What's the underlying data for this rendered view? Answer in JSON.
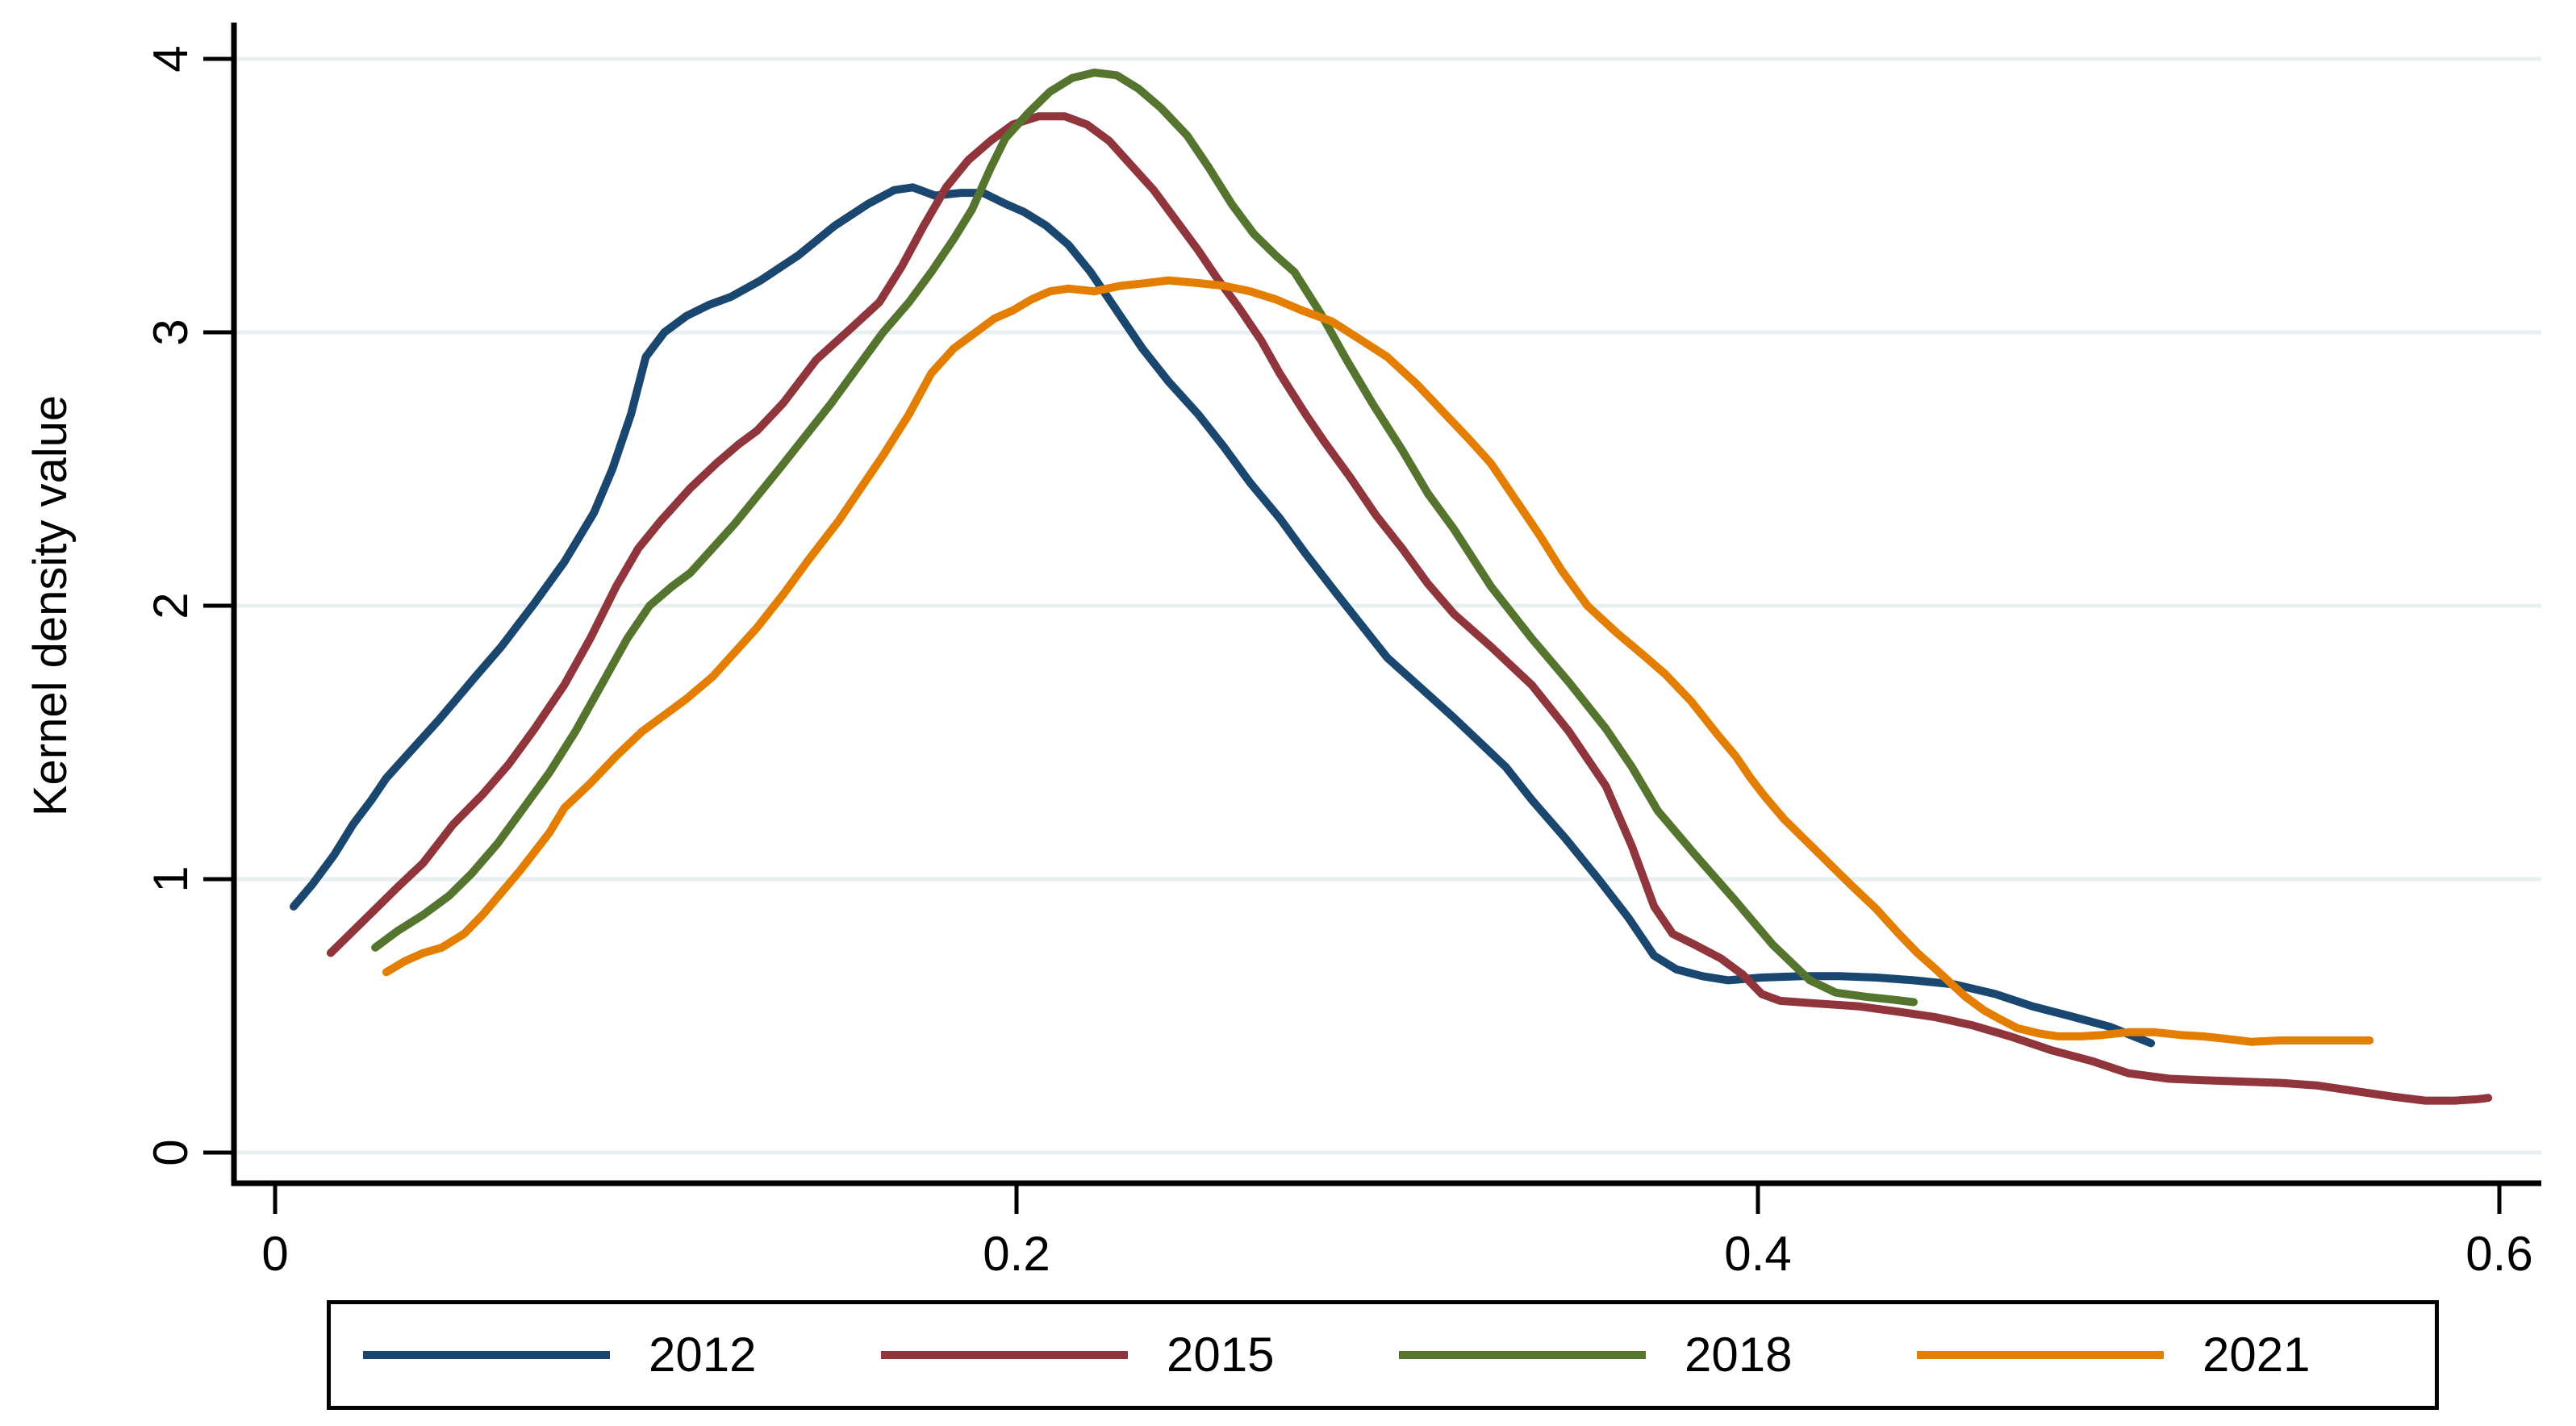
{
  "colors": {
    "background": "#ffffff",
    "axis": "#000000",
    "grid": "#e7eff1",
    "legend_border": "#000000"
  },
  "chart_data": {
    "type": "line",
    "title": "",
    "xlabel": "",
    "ylabel": "Kernel density value",
    "grid": "horizontal",
    "legend_position": "bottom",
    "xlim": [
      -0.011,
      0.611
    ],
    "ylim": [
      0,
      4
    ],
    "x_ticks": {
      "values": [
        0,
        0.2,
        0.4,
        0.6
      ],
      "labels": [
        "0",
        "0.2",
        "0.4",
        "0.6"
      ]
    },
    "y_ticks": {
      "values": [
        0,
        1,
        2,
        3,
        4
      ],
      "labels": [
        "0",
        "1",
        "2",
        "3",
        "4"
      ]
    },
    "series": [
      {
        "name": "2012",
        "color": "#1a476f",
        "points": [
          [
            0.005,
            0.9
          ],
          [
            0.01,
            0.98
          ],
          [
            0.016,
            1.09
          ],
          [
            0.021,
            1.2
          ],
          [
            0.026,
            1.29
          ],
          [
            0.03,
            1.37
          ],
          [
            0.036,
            1.46
          ],
          [
            0.044,
            1.58
          ],
          [
            0.049,
            1.66
          ],
          [
            0.054,
            1.74
          ],
          [
            0.061,
            1.85
          ],
          [
            0.07,
            2.01
          ],
          [
            0.078,
            2.16
          ],
          [
            0.082,
            2.25
          ],
          [
            0.086,
            2.34
          ],
          [
            0.091,
            2.5
          ],
          [
            0.096,
            2.7
          ],
          [
            0.1,
            2.91
          ],
          [
            0.105,
            3.0
          ],
          [
            0.111,
            3.06
          ],
          [
            0.117,
            3.1
          ],
          [
            0.123,
            3.13
          ],
          [
            0.131,
            3.19
          ],
          [
            0.141,
            3.28
          ],
          [
            0.151,
            3.39
          ],
          [
            0.16,
            3.47
          ],
          [
            0.167,
            3.52
          ],
          [
            0.172,
            3.53
          ],
          [
            0.178,
            3.5
          ],
          [
            0.185,
            3.51
          ],
          [
            0.191,
            3.51
          ],
          [
            0.197,
            3.47
          ],
          [
            0.202,
            3.44
          ],
          [
            0.208,
            3.39
          ],
          [
            0.214,
            3.32
          ],
          [
            0.22,
            3.22
          ],
          [
            0.227,
            3.08
          ],
          [
            0.234,
            2.94
          ],
          [
            0.241,
            2.82
          ],
          [
            0.249,
            2.7
          ],
          [
            0.256,
            2.58
          ],
          [
            0.263,
            2.45
          ],
          [
            0.271,
            2.32
          ],
          [
            0.278,
            2.19
          ],
          [
            0.286,
            2.05
          ],
          [
            0.293,
            1.93
          ],
          [
            0.3,
            1.81
          ],
          [
            0.309,
            1.7
          ],
          [
            0.318,
            1.59
          ],
          [
            0.325,
            1.5
          ],
          [
            0.332,
            1.41
          ],
          [
            0.339,
            1.29
          ],
          [
            0.348,
            1.15
          ],
          [
            0.357,
            1.0
          ],
          [
            0.365,
            0.86
          ],
          [
            0.372,
            0.72
          ],
          [
            0.378,
            0.67
          ],
          [
            0.385,
            0.645
          ],
          [
            0.392,
            0.63
          ],
          [
            0.401,
            0.64
          ],
          [
            0.412,
            0.645
          ],
          [
            0.422,
            0.645
          ],
          [
            0.432,
            0.64
          ],
          [
            0.442,
            0.63
          ],
          [
            0.453,
            0.615
          ],
          [
            0.464,
            0.58
          ],
          [
            0.474,
            0.535
          ],
          [
            0.484,
            0.5
          ],
          [
            0.495,
            0.46
          ],
          [
            0.506,
            0.4
          ]
        ]
      },
      {
        "name": "2015",
        "color": "#90353b",
        "points": [
          [
            0.015,
            0.73
          ],
          [
            0.021,
            0.81
          ],
          [
            0.027,
            0.89
          ],
          [
            0.033,
            0.97
          ],
          [
            0.04,
            1.06
          ],
          [
            0.048,
            1.2
          ],
          [
            0.056,
            1.31
          ],
          [
            0.063,
            1.42
          ],
          [
            0.07,
            1.55
          ],
          [
            0.078,
            1.71
          ],
          [
            0.085,
            1.88
          ],
          [
            0.092,
            2.07
          ],
          [
            0.098,
            2.21
          ],
          [
            0.104,
            2.31
          ],
          [
            0.112,
            2.43
          ],
          [
            0.119,
            2.52
          ],
          [
            0.125,
            2.59
          ],
          [
            0.13,
            2.64
          ],
          [
            0.137,
            2.74
          ],
          [
            0.146,
            2.9
          ],
          [
            0.155,
            3.01
          ],
          [
            0.163,
            3.11
          ],
          [
            0.169,
            3.24
          ],
          [
            0.175,
            3.39
          ],
          [
            0.181,
            3.53
          ],
          [
            0.187,
            3.63
          ],
          [
            0.193,
            3.7
          ],
          [
            0.199,
            3.76
          ],
          [
            0.206,
            3.79
          ],
          [
            0.213,
            3.79
          ],
          [
            0.219,
            3.76
          ],
          [
            0.225,
            3.7
          ],
          [
            0.231,
            3.61
          ],
          [
            0.237,
            3.52
          ],
          [
            0.243,
            3.41
          ],
          [
            0.249,
            3.3
          ],
          [
            0.254,
            3.2
          ],
          [
            0.26,
            3.09
          ],
          [
            0.266,
            2.97
          ],
          [
            0.271,
            2.85
          ],
          [
            0.278,
            2.7
          ],
          [
            0.283,
            2.6
          ],
          [
            0.29,
            2.47
          ],
          [
            0.297,
            2.33
          ],
          [
            0.304,
            2.21
          ],
          [
            0.311,
            2.08
          ],
          [
            0.318,
            1.97
          ],
          [
            0.328,
            1.85
          ],
          [
            0.339,
            1.71
          ],
          [
            0.349,
            1.54
          ],
          [
            0.359,
            1.34
          ],
          [
            0.366,
            1.12
          ],
          [
            0.372,
            0.9
          ],
          [
            0.377,
            0.8
          ],
          [
            0.383,
            0.76
          ],
          [
            0.39,
            0.71
          ],
          [
            0.396,
            0.65
          ],
          [
            0.401,
            0.58
          ],
          [
            0.406,
            0.555
          ],
          [
            0.416,
            0.545
          ],
          [
            0.427,
            0.535
          ],
          [
            0.438,
            0.515
          ],
          [
            0.448,
            0.495
          ],
          [
            0.458,
            0.465
          ],
          [
            0.468,
            0.425
          ],
          [
            0.479,
            0.375
          ],
          [
            0.49,
            0.335
          ],
          [
            0.5,
            0.29
          ],
          [
            0.511,
            0.27
          ],
          [
            0.52,
            0.265
          ],
          [
            0.53,
            0.26
          ],
          [
            0.541,
            0.255
          ],
          [
            0.551,
            0.245
          ],
          [
            0.561,
            0.225
          ],
          [
            0.571,
            0.205
          ],
          [
            0.58,
            0.19
          ],
          [
            0.588,
            0.19
          ],
          [
            0.594,
            0.195
          ],
          [
            0.597,
            0.2
          ]
        ]
      },
      {
        "name": "2018",
        "color": "#55752f",
        "points": [
          [
            0.027,
            0.75
          ],
          [
            0.033,
            0.81
          ],
          [
            0.04,
            0.87
          ],
          [
            0.047,
            0.94
          ],
          [
            0.053,
            1.02
          ],
          [
            0.06,
            1.13
          ],
          [
            0.067,
            1.26
          ],
          [
            0.074,
            1.39
          ],
          [
            0.081,
            1.54
          ],
          [
            0.088,
            1.71
          ],
          [
            0.095,
            1.88
          ],
          [
            0.101,
            2.0
          ],
          [
            0.107,
            2.07
          ],
          [
            0.112,
            2.12
          ],
          [
            0.118,
            2.21
          ],
          [
            0.124,
            2.3
          ],
          [
            0.13,
            2.4
          ],
          [
            0.136,
            2.5
          ],
          [
            0.143,
            2.62
          ],
          [
            0.15,
            2.74
          ],
          [
            0.157,
            2.87
          ],
          [
            0.164,
            3.0
          ],
          [
            0.171,
            3.11
          ],
          [
            0.177,
            3.22
          ],
          [
            0.183,
            3.34
          ],
          [
            0.188,
            3.45
          ],
          [
            0.193,
            3.6
          ],
          [
            0.197,
            3.71
          ],
          [
            0.203,
            3.8
          ],
          [
            0.209,
            3.88
          ],
          [
            0.215,
            3.93
          ],
          [
            0.221,
            3.95
          ],
          [
            0.227,
            3.94
          ],
          [
            0.233,
            3.89
          ],
          [
            0.239,
            3.82
          ],
          [
            0.246,
            3.72
          ],
          [
            0.252,
            3.6
          ],
          [
            0.258,
            3.47
          ],
          [
            0.264,
            3.36
          ],
          [
            0.27,
            3.28
          ],
          [
            0.275,
            3.22
          ],
          [
            0.282,
            3.07
          ],
          [
            0.289,
            2.9
          ],
          [
            0.296,
            2.74
          ],
          [
            0.304,
            2.57
          ],
          [
            0.311,
            2.41
          ],
          [
            0.318,
            2.28
          ],
          [
            0.328,
            2.07
          ],
          [
            0.339,
            1.88
          ],
          [
            0.349,
            1.72
          ],
          [
            0.359,
            1.55
          ],
          [
            0.366,
            1.41
          ],
          [
            0.373,
            1.25
          ],
          [
            0.383,
            1.09
          ],
          [
            0.394,
            0.92
          ],
          [
            0.404,
            0.76
          ],
          [
            0.414,
            0.63
          ],
          [
            0.421,
            0.585
          ],
          [
            0.429,
            0.57
          ],
          [
            0.436,
            0.56
          ],
          [
            0.442,
            0.55
          ]
        ]
      },
      {
        "name": "2021",
        "color": "#e37e00",
        "points": [
          [
            0.03,
            0.66
          ],
          [
            0.035,
            0.7
          ],
          [
            0.04,
            0.73
          ],
          [
            0.045,
            0.75
          ],
          [
            0.051,
            0.8
          ],
          [
            0.056,
            0.87
          ],
          [
            0.061,
            0.95
          ],
          [
            0.066,
            1.03
          ],
          [
            0.07,
            1.1
          ],
          [
            0.074,
            1.17
          ],
          [
            0.078,
            1.26
          ],
          [
            0.085,
            1.35
          ],
          [
            0.092,
            1.45
          ],
          [
            0.099,
            1.54
          ],
          [
            0.105,
            1.6
          ],
          [
            0.111,
            1.66
          ],
          [
            0.118,
            1.74
          ],
          [
            0.124,
            1.83
          ],
          [
            0.13,
            1.92
          ],
          [
            0.137,
            2.04
          ],
          [
            0.144,
            2.17
          ],
          [
            0.152,
            2.31
          ],
          [
            0.158,
            2.43
          ],
          [
            0.164,
            2.55
          ],
          [
            0.171,
            2.7
          ],
          [
            0.177,
            2.85
          ],
          [
            0.183,
            2.94
          ],
          [
            0.189,
            3.0
          ],
          [
            0.194,
            3.05
          ],
          [
            0.199,
            3.08
          ],
          [
            0.204,
            3.12
          ],
          [
            0.209,
            3.15
          ],
          [
            0.214,
            3.16
          ],
          [
            0.221,
            3.15
          ],
          [
            0.228,
            3.17
          ],
          [
            0.235,
            3.18
          ],
          [
            0.241,
            3.19
          ],
          [
            0.249,
            3.18
          ],
          [
            0.256,
            3.17
          ],
          [
            0.263,
            3.15
          ],
          [
            0.27,
            3.12
          ],
          [
            0.277,
            3.08
          ],
          [
            0.285,
            3.04
          ],
          [
            0.292,
            2.98
          ],
          [
            0.3,
            2.91
          ],
          [
            0.308,
            2.81
          ],
          [
            0.315,
            2.71
          ],
          [
            0.322,
            2.61
          ],
          [
            0.328,
            2.52
          ],
          [
            0.334,
            2.4
          ],
          [
            0.341,
            2.26
          ],
          [
            0.347,
            2.13
          ],
          [
            0.354,
            2.0
          ],
          [
            0.362,
            1.9
          ],
          [
            0.369,
            1.82
          ],
          [
            0.375,
            1.75
          ],
          [
            0.382,
            1.65
          ],
          [
            0.389,
            1.53
          ],
          [
            0.394,
            1.45
          ],
          [
            0.398,
            1.37
          ],
          [
            0.402,
            1.3
          ],
          [
            0.407,
            1.22
          ],
          [
            0.413,
            1.14
          ],
          [
            0.419,
            1.06
          ],
          [
            0.425,
            0.98
          ],
          [
            0.432,
            0.89
          ],
          [
            0.438,
            0.8
          ],
          [
            0.443,
            0.73
          ],
          [
            0.448,
            0.67
          ],
          [
            0.452,
            0.62
          ],
          [
            0.456,
            0.57
          ],
          [
            0.461,
            0.52
          ],
          [
            0.465,
            0.49
          ],
          [
            0.47,
            0.455
          ],
          [
            0.476,
            0.435
          ],
          [
            0.481,
            0.425
          ],
          [
            0.487,
            0.425
          ],
          [
            0.493,
            0.43
          ],
          [
            0.5,
            0.44
          ],
          [
            0.507,
            0.44
          ],
          [
            0.514,
            0.43
          ],
          [
            0.52,
            0.425
          ],
          [
            0.527,
            0.415
          ],
          [
            0.533,
            0.405
          ],
          [
            0.541,
            0.41
          ],
          [
            0.549,
            0.41
          ],
          [
            0.557,
            0.41
          ],
          [
            0.565,
            0.41
          ]
        ]
      }
    ]
  },
  "legend": {
    "items": [
      "2012",
      "2015",
      "2018",
      "2021"
    ]
  }
}
